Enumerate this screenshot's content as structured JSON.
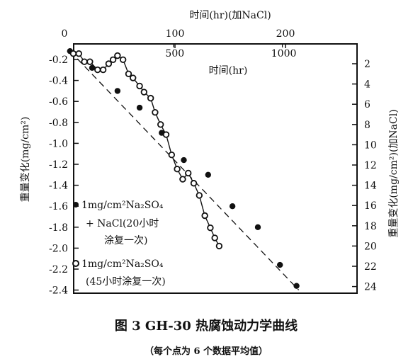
{
  "chart_data": {
    "type": "scatter",
    "caption": "图 3    GH-30 热腐蚀动力学曲线",
    "note": "（每个点为 6 个数据平均值）",
    "top_axis": {
      "label": "时间(hr)(加NaCl)",
      "ticks": [
        "0",
        "100",
        "200"
      ],
      "range": [
        0,
        220
      ]
    },
    "inner_x_axis": {
      "label": "时间(hr)",
      "ticks": [
        "500",
        "1000"
      ],
      "range": [
        0,
        1150
      ]
    },
    "left_axis": {
      "label": "重量变化(mg/cm²)",
      "ticks": [
        "-0.2",
        "-0.4",
        "-0.6",
        "-0.8",
        "-1.0",
        "-1.2",
        "-1.4",
        "-1.6",
        "-1.8",
        "-2.0",
        "-2.2",
        "-2.4"
      ],
      "range": [
        -0.1,
        -2.45
      ]
    },
    "right_axis": {
      "label": "重量变化(mg/cm²)(加NaCl)",
      "ticks": [
        "2",
        "4",
        "6",
        "8",
        "10",
        "12",
        "14",
        "16",
        "18",
        "20",
        "22",
        "24"
      ],
      "range": [
        1,
        24.5
      ]
    },
    "series": [
      {
        "name_line1": "1mg/cm²Na₂SO₄",
        "name_line2": "+ NaCl(20小时",
        "name_line3": "涂复一次)",
        "marker": "filled",
        "line": "dashed",
        "x_axis": "top",
        "y_axis": "left",
        "x": [
          5,
          25,
          48,
          68,
          88,
          108,
          130,
          152,
          175,
          195,
          210
        ],
        "y": [
          -0.12,
          -0.28,
          -0.5,
          -0.66,
          -0.9,
          -1.16,
          -1.3,
          -1.6,
          -1.8,
          -2.16,
          -2.36
        ]
      },
      {
        "name_line1": "1mg/cm²Na₂SO₄",
        "name_line2": "(45小时涂复一次)",
        "marker": "open",
        "line": "solid",
        "x_axis": "top",
        "y_axis": "right",
        "x": [
          8,
          13,
          18,
          23,
          30,
          35,
          40,
          44,
          48,
          53,
          58,
          62,
          68,
          72,
          78,
          82,
          87,
          92,
          97,
          102,
          107,
          112,
          117,
          122,
          127,
          132,
          136,
          140
        ],
        "y": [
          1.0,
          1.0,
          1.8,
          1.8,
          2.6,
          2.6,
          2.0,
          1.6,
          1.2,
          1.6,
          3.0,
          3.4,
          4.2,
          4.8,
          5.4,
          6.8,
          8.0,
          9.0,
          11.0,
          12.4,
          13.4,
          12.8,
          13.8,
          15.0,
          17.0,
          18.2,
          19.2,
          20.0
        ]
      }
    ]
  }
}
